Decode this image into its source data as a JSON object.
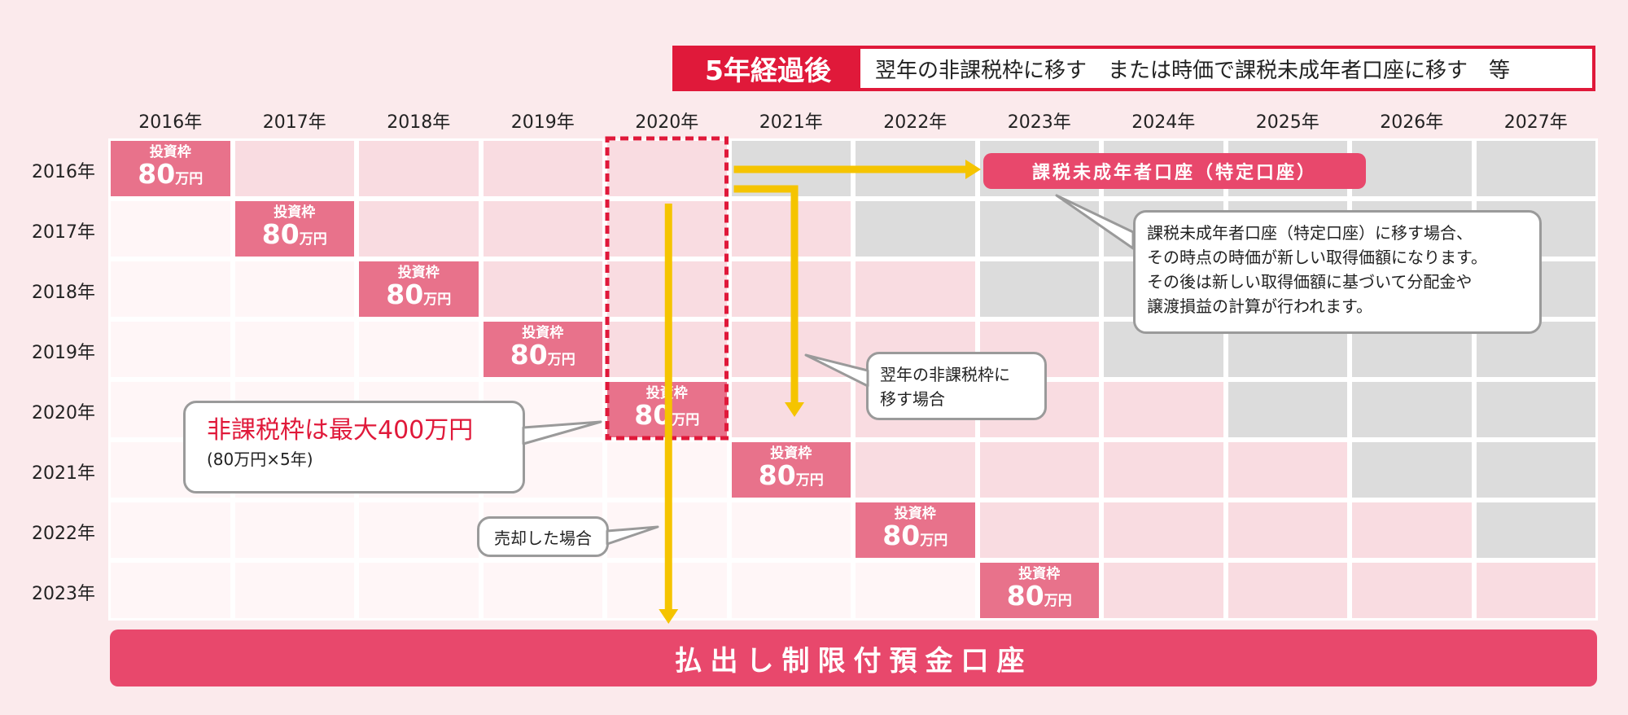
{
  "header": {
    "tag": "5年経過後",
    "text": "翌年の非課税枠に移す　または時価で課税未成年者口座に移す　等"
  },
  "years_columns": [
    "2016年",
    "2017年",
    "2018年",
    "2019年",
    "2020年",
    "2021年",
    "2022年",
    "2023年",
    "2024年",
    "2025年",
    "2026年",
    "2027年"
  ],
  "years_rows": [
    "2016年",
    "2017年",
    "2018年",
    "2019年",
    "2020年",
    "2021年",
    "2022年",
    "2023年"
  ],
  "frame_cell": {
    "top": "投資枠",
    "amount": "80",
    "unit": "万円"
  },
  "colors": {
    "frame": "#e8728b",
    "pink_cell": "#f9dce1",
    "white_cell": "#fff6f7",
    "gray_cell": "#dcdcdc",
    "accent_red": "#e0193a",
    "bar_pink": "#e8486c",
    "arrow_yellow": "#f5c400",
    "background": "#fbeaec"
  },
  "pill": "課税未成年者口座（特定口座）",
  "bubble_taxable": {
    "line1": "課税未成年者口座（特定口座）に移す場合、",
    "line2": "その時点の時価が新しい取得価額になります。",
    "line3": "その後は新しい取得価額に基づいて分配金や",
    "line4": "譲渡損益の計算が行われます。"
  },
  "bubble_nextyear": {
    "line1": "翌年の非課税枠に",
    "line2": "移す場合"
  },
  "bubble_max": {
    "title": "非課税枠は最大400万円",
    "sub": "(80万円×5年)"
  },
  "bubble_sold": "売却した場合",
  "bottom_bar": "払出し制限付預金口座"
}
